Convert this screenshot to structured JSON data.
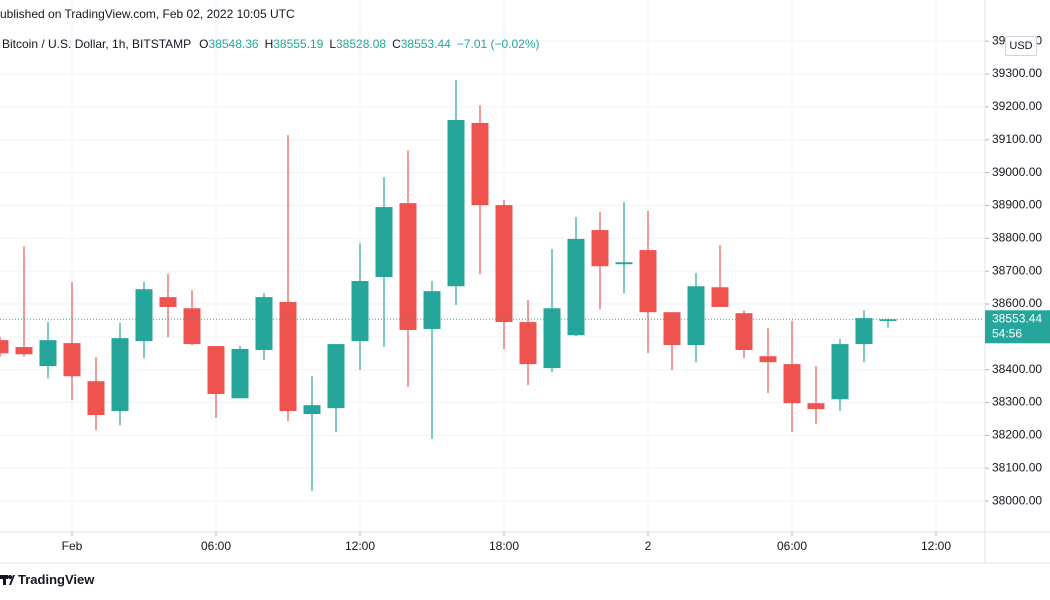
{
  "header": "ublished on TradingView.com, Feb 02, 2022 10:05 UTC",
  "footer": "TradingView",
  "currency": "USD",
  "change": "−7.01 (−0.02%)",
  "countdown": "54:56",
  "chart_data": {
    "type": "candlestick",
    "name": "Bitcoin / U.S. Dollar, 1h, BITSTAMP",
    "ohlc_labels": [
      "O",
      "H",
      "L",
      "C"
    ],
    "up_color": "#26a69a",
    "down_color": "#ef5350",
    "grid": true,
    "x": [
      -3,
      -2,
      -1,
      0,
      1,
      2,
      3,
      4,
      5,
      6,
      7,
      8,
      9,
      10,
      11,
      12,
      13,
      14,
      15,
      16,
      17,
      18,
      19,
      20,
      21,
      22,
      23,
      24,
      25,
      26,
      27,
      28,
      29,
      30,
      31,
      32,
      33,
      34
    ],
    "open": [
      38490,
      38469,
      38411,
      38481,
      38365,
      38274,
      38487,
      38621,
      38587,
      38472,
      38313,
      38460,
      38606,
      38265,
      38283,
      38487,
      38682,
      38907,
      38524,
      38654,
      39151,
      38901,
      38545,
      38405,
      38505,
      38825,
      38721,
      38764,
      38575,
      38475,
      38651,
      38572,
      38441,
      38417,
      38298,
      38310,
      38478,
      38548.36
    ],
    "high": [
      38500,
      38776,
      38545,
      38667,
      38438,
      38542,
      38667,
      38691,
      38642,
      38472,
      38472,
      38633,
      39114,
      38380,
      38478,
      38785,
      38986,
      39068,
      38670,
      39282,
      39205,
      38916,
      38612,
      38767,
      38865,
      38880,
      38910,
      38883,
      38575,
      38694,
      38779,
      38581,
      38527,
      38548,
      38411,
      38493,
      38581,
      38555.19
    ],
    "low": [
      38440,
      38440,
      38374,
      38307,
      38216,
      38231,
      38435,
      38499,
      38475,
      38253,
      38313,
      38429,
      38244,
      38030,
      38210,
      38399,
      38469,
      38347,
      38189,
      38597,
      38691,
      38463,
      38353,
      38393,
      38502,
      38584,
      38633,
      38451,
      38399,
      38423,
      38591,
      38435,
      38329,
      38210,
      38234,
      38274,
      38423,
      38528.08
    ],
    "close": [
      38450,
      38447,
      38490,
      38380,
      38262,
      38496,
      38645,
      38591,
      38478,
      38326,
      38463,
      38621,
      38274,
      38292,
      38478,
      38670,
      38895,
      38521,
      38639,
      39160,
      38901,
      38545,
      38417,
      38587,
      38798,
      38715,
      38727,
      38575,
      38475,
      38654,
      38591,
      38460,
      38423,
      38298,
      38280,
      38478,
      38557,
      38553.44
    ],
    "xlim": [
      -3,
      38
    ],
    "xticks": [
      {
        "value": 0,
        "label": "Feb"
      },
      {
        "value": 6,
        "label": "06:00"
      },
      {
        "value": 12,
        "label": "12:00"
      },
      {
        "value": 18,
        "label": "18:00"
      },
      {
        "value": 24,
        "label": "2"
      },
      {
        "value": 30,
        "label": "06:00"
      },
      {
        "value": 36,
        "label": "12:00"
      }
    ],
    "ylim": [
      37906,
      39434
    ],
    "yticks": [
      {
        "value": 38000,
        "label": "38000.00"
      },
      {
        "value": 38100,
        "label": "38100.00"
      },
      {
        "value": 38200,
        "label": "38200.00"
      },
      {
        "value": 38300,
        "label": "38300.00"
      },
      {
        "value": 38400,
        "label": "38400.00"
      },
      {
        "value": 38500,
        "label": "38500.00"
      },
      {
        "value": 38600,
        "label": "38600.00"
      },
      {
        "value": 38700,
        "label": "38700.00"
      },
      {
        "value": 38800,
        "label": "38800.00"
      },
      {
        "value": 38900,
        "label": "38900.00"
      },
      {
        "value": 39000,
        "label": "39000.00"
      },
      {
        "value": 39100,
        "label": "39100.00"
      },
      {
        "value": 39200,
        "label": "39200.00"
      },
      {
        "value": 39300,
        "label": "39300.00"
      },
      {
        "value": 39400,
        "label": "39400.00"
      }
    ]
  }
}
